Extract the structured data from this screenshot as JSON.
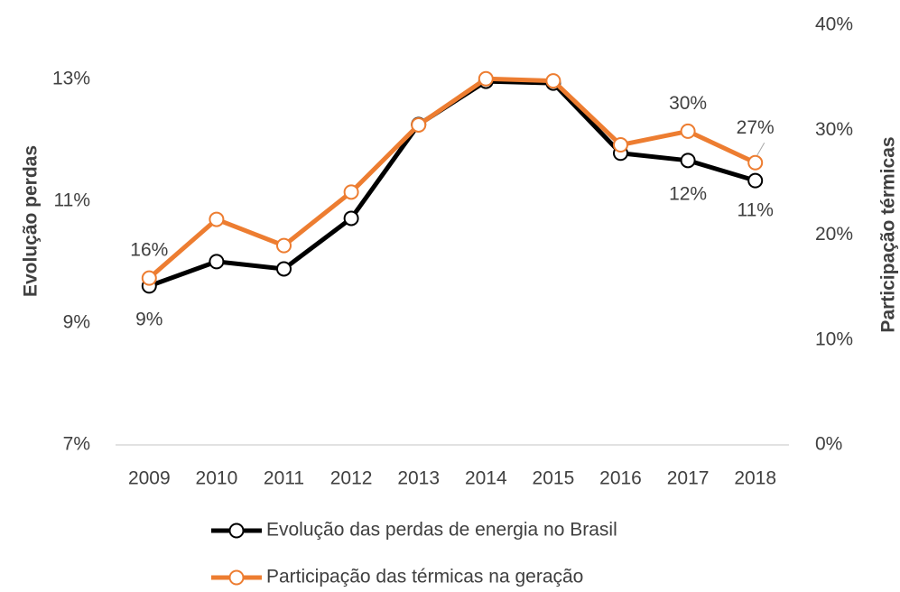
{
  "chart_data": {
    "type": "line",
    "categories": [
      "2009",
      "2010",
      "2011",
      "2012",
      "2013",
      "2014",
      "2015",
      "2016",
      "2017",
      "2018"
    ],
    "ylabel": "Evolução perdas",
    "y2label": "Participação térmicas",
    "ylim": [
      6.85,
      13.74
    ],
    "yticks": [
      {
        "value": 6.85,
        "label": "7%"
      },
      {
        "value": 8.85,
        "label": "9%"
      },
      {
        "value": 10.85,
        "label": "11%"
      },
      {
        "value": 12.85,
        "label": "13%"
      }
    ],
    "y2lim": [
      0,
      40
    ],
    "y2ticks": [
      {
        "value": 0,
        "label": "0%"
      },
      {
        "value": 10,
        "label": "10%"
      },
      {
        "value": 20,
        "label": "20%"
      },
      {
        "value": 30,
        "label": "30%"
      },
      {
        "value": 40,
        "label": "40%"
      }
    ],
    "series": [
      {
        "name": "Evolução das perdas de energia no Brasil",
        "color": "#000000",
        "axis": "y",
        "values": [
          9.46,
          9.86,
          9.74,
          10.57,
          12.11,
          12.82,
          12.79,
          11.64,
          11.52,
          11.19
        ],
        "value_labels": [
          "9%",
          null,
          null,
          null,
          null,
          null,
          null,
          null,
          "12%",
          "11%"
        ]
      },
      {
        "name": "Participação das térmicas na geração",
        "color": "#ed7d31",
        "axis": "y2",
        "values": [
          15.9,
          21.5,
          19.0,
          24.1,
          30.5,
          34.9,
          34.7,
          28.6,
          29.9,
          26.9
        ],
        "value_labels": [
          "16%",
          null,
          null,
          null,
          null,
          null,
          null,
          null,
          "30%",
          "27%"
        ]
      }
    ]
  }
}
